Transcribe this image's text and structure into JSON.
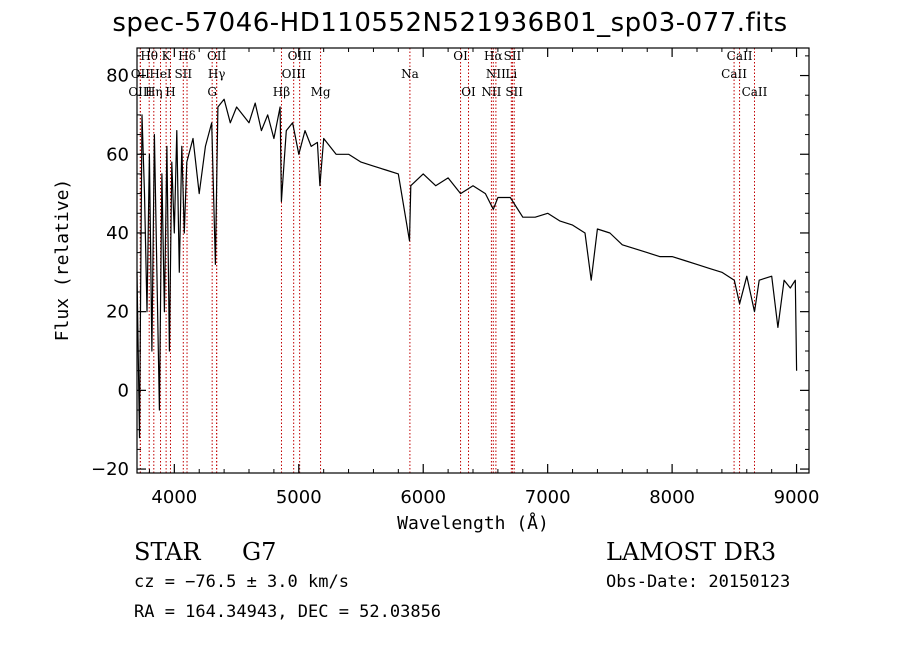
{
  "title": "spec-57046-HD110552N521936B01_sp03-077.fits",
  "info": {
    "object_class": "STAR",
    "subclass": "G7",
    "survey": "LAMOST DR3",
    "cz": "cz = −76.5 ± 3.0 km/s",
    "obs_date": "Obs-Date: 20150123",
    "ra_dec": "RA = 164.34943, DEC =  52.03856"
  },
  "chart_data": {
    "type": "line",
    "title": "spec-57046-HD110552N521936B01_sp03-077.fits",
    "xlabel": "Wavelength (Å)",
    "ylabel": "Flux (relative)",
    "xlim": [
      3700,
      9100
    ],
    "ylim": [
      -21,
      87
    ],
    "xticks": [
      4000,
      5000,
      6000,
      7000,
      8000,
      9000
    ],
    "yticks": [
      -20,
      0,
      20,
      40,
      60,
      80
    ],
    "ytick_labels": [
      "−20",
      "0",
      "20",
      "40",
      "60",
      "80"
    ],
    "series": [
      {
        "name": "flux",
        "x": [
          3700,
          3720,
          3740,
          3760,
          3780,
          3800,
          3820,
          3840,
          3860,
          3880,
          3900,
          3920,
          3940,
          3960,
          3980,
          4000,
          4020,
          4040,
          4060,
          4080,
          4100,
          4150,
          4200,
          4250,
          4300,
          4330,
          4350,
          4400,
          4450,
          4500,
          4550,
          4600,
          4650,
          4700,
          4750,
          4800,
          4850,
          4860,
          4900,
          4950,
          5000,
          5050,
          5100,
          5150,
          5170,
          5200,
          5250,
          5300,
          5400,
          5500,
          5600,
          5700,
          5800,
          5890,
          5900,
          6000,
          6100,
          6200,
          6300,
          6400,
          6500,
          6563,
          6600,
          6700,
          6800,
          6900,
          7000,
          7100,
          7200,
          7300,
          7350,
          7400,
          7500,
          7600,
          7700,
          7800,
          7900,
          8000,
          8100,
          8200,
          8300,
          8400,
          8500,
          8542,
          8600,
          8662,
          8700,
          8800,
          8850,
          8900,
          8950,
          8990,
          9000
        ],
        "y": [
          30,
          -12,
          70,
          50,
          20,
          60,
          10,
          65,
          30,
          -5,
          55,
          20,
          62,
          10,
          58,
          40,
          66,
          30,
          62,
          40,
          58,
          64,
          50,
          62,
          68,
          32,
          72,
          74,
          68,
          72,
          70,
          68,
          73,
          66,
          70,
          64,
          72,
          48,
          66,
          68,
          60,
          66,
          62,
          63,
          52,
          64,
          62,
          60,
          60,
          58,
          57,
          56,
          55,
          38,
          52,
          55,
          52,
          54,
          50,
          52,
          50,
          46,
          49,
          49,
          44,
          44,
          45,
          43,
          42,
          40,
          28,
          41,
          40,
          37,
          36,
          35,
          34,
          34,
          33,
          32,
          31,
          30,
          28,
          22,
          29,
          20,
          28,
          29,
          16,
          28,
          26,
          28,
          5
        ]
      }
    ],
    "spectral_lines": [
      {
        "label": "Hθ",
        "x": 3798,
        "row": 1
      },
      {
        "label": "K",
        "x": 3934,
        "row": 1
      },
      {
        "label": "Hδ",
        "x": 4102,
        "row": 1
      },
      {
        "label": "OII",
        "x": 4340,
        "row": 1
      },
      {
        "label": "OIII",
        "x": 5007,
        "row": 1
      },
      {
        "label": "OI",
        "x": 6300,
        "row": 1
      },
      {
        "label": "Hα",
        "x": 6563,
        "row": 1
      },
      {
        "label": "SII",
        "x": 6717,
        "row": 1
      },
      {
        "label": "CaII",
        "x": 8542,
        "row": 1
      },
      {
        "label": "OII",
        "x": 3727,
        "row": 2
      },
      {
        "label": "HeI",
        "x": 3889,
        "row": 2
      },
      {
        "label": "SII",
        "x": 4072,
        "row": 2
      },
      {
        "label": "Hγ",
        "x": 4340,
        "row": 2
      },
      {
        "label": "OIII",
        "x": 4959,
        "row": 2
      },
      {
        "label": "Na",
        "x": 5893,
        "row": 2
      },
      {
        "label": "NII",
        "x": 6584,
        "row": 2
      },
      {
        "label": "Li",
        "x": 6708,
        "row": 2
      },
      {
        "label": "CaII",
        "x": 8498,
        "row": 2
      },
      {
        "label": "OIII",
        "x": 3727,
        "row": 3
      },
      {
        "label": "Hη",
        "x": 3835,
        "row": 3
      },
      {
        "label": "H",
        "x": 3969,
        "row": 3
      },
      {
        "label": "G",
        "x": 4304,
        "row": 3
      },
      {
        "label": "Hβ",
        "x": 4861,
        "row": 3
      },
      {
        "label": "Mg",
        "x": 5175,
        "row": 3
      },
      {
        "label": "OI",
        "x": 6364,
        "row": 3
      },
      {
        "label": "NII",
        "x": 6548,
        "row": 3
      },
      {
        "label": "SII",
        "x": 6731,
        "row": 3
      },
      {
        "label": "CaII",
        "x": 8662,
        "row": 3
      }
    ]
  }
}
